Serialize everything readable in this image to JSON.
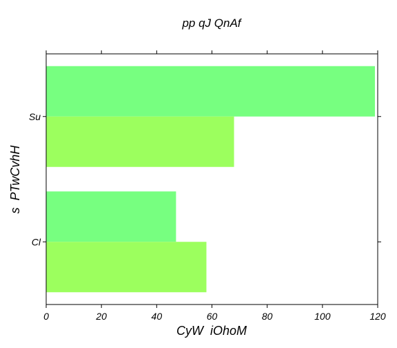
{
  "chart_data": {
    "type": "bar",
    "orientation": "horizontal",
    "title": "pp qJ QnAf",
    "xlabel": "CyW  iOhoM",
    "ylabel": "s  PTwCvhH",
    "categories": [
      "Cl",
      "Su"
    ],
    "series": [
      {
        "values": [
          47,
          119
        ],
        "color": "#77ff80"
      },
      {
        "values": [
          58,
          68
        ],
        "color": "#9cff5e"
      }
    ],
    "xlim": [
      0,
      120
    ],
    "xticks": [
      "0",
      "20",
      "40",
      "60",
      "80",
      "100",
      "120"
    ],
    "grid": false,
    "legend": "none"
  }
}
